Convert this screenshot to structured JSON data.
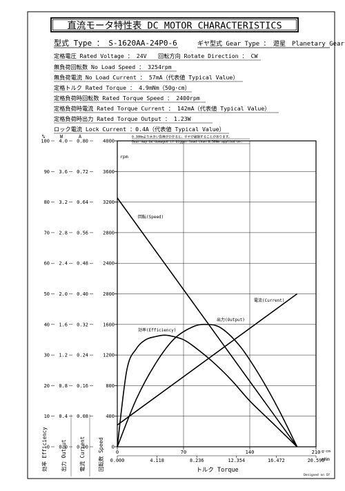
{
  "header": {
    "title": "直流モータ特性表 DC MOTOR CHARACTERISTICS",
    "model_label": "型式 Type ： S-1620AA-24P0-6",
    "gear_type": "ギヤ型式 Gear Type ： 遊星　Planetary Gear",
    "specs": [
      "定格電圧 Rated Voltage ： 24V",
      "回転方向 Rotate Direction ： CW",
      "無負荷回転数 No Load Speed ： 3254rpm",
      "無負荷電流 No Load Current ： 57mA（代表値 Typical Value）",
      "定格トルク Rated Torque ： 4.9mNm（50g･cm）",
      "定格負荷時回転数 Rated Torque Speed ： 2400rpm",
      "定格負荷時電流 Rated Torque Current ： 142mA（代表値 Typical Value）",
      "定格負荷時出力 Rated Torque Output ： 1.23W",
      "ロック電流 Lock Current ：0.4A（代表値 Typical Value）"
    ],
    "warning_jp": "0.38Nmより大きい負荷がかかると、ギヤが破損することがあります。",
    "warning_en": "Gear may be damaged if bigger load than 0.38Nm applied on.",
    "footer_note": "Designed on SY"
  },
  "chart_data": {
    "type": "line",
    "units": {
      "efficiency": "%",
      "output": "W",
      "current": "A",
      "speed": "rpm"
    },
    "xlabel": "トルク Torque",
    "x_unit_gcm": "g･cm",
    "x_unit_mnm": "mNm",
    "x_ticks_gcm": [
      "0",
      "70",
      "140",
      "210"
    ],
    "x_ticks_mnm": [
      "0.000",
      "4.118",
      "8.236",
      "12.354",
      "16.472",
      "20.590"
    ],
    "xlim_gcm": [
      0,
      210
    ],
    "y_axis_titles": [
      "効率 Efficiency",
      "出力 Output",
      "電流 Current",
      "回転数 Speed"
    ],
    "efficiency_ticks": [
      "100",
      "90",
      "80",
      "70",
      "60",
      "50",
      "40",
      "30",
      "20",
      "10",
      "0"
    ],
    "output_ticks": [
      "4.0",
      "3.6",
      "3.2",
      "2.8",
      "2.4",
      "2.0",
      "1.6",
      "1.2",
      "0.8",
      "0.4",
      "0.0"
    ],
    "current_ticks": [
      "0.80",
      "0.72",
      "0.64",
      "0.56",
      "0.48",
      "0.40",
      "0.32",
      "0.24",
      "0.16",
      "0.08",
      "0.00"
    ],
    "speed_ticks": [
      "4000",
      "3600",
      "3200",
      "2800",
      "2400",
      "2000",
      "1600",
      "1200",
      "800",
      "400",
      "0"
    ],
    "ylim_speed": [
      0,
      4000
    ],
    "series": [
      {
        "name": "回転(Speed)",
        "axis": "speed",
        "x": [
          0,
          190
        ],
        "y": [
          3254,
          0
        ]
      },
      {
        "name": "電流(Current)",
        "axis": "current",
        "x": [
          0,
          190
        ],
        "y": [
          0.057,
          0.4
        ]
      },
      {
        "name": "出力(Output)",
        "axis": "output",
        "x": [
          0,
          20,
          40,
          60,
          80,
          95,
          110,
          130,
          150,
          170,
          190
        ],
        "y": [
          0,
          0.62,
          1.08,
          1.41,
          1.57,
          1.6,
          1.55,
          1.31,
          0.94,
          0.5,
          0
        ]
      },
      {
        "name": "効率(Efficiency)",
        "axis": "efficiency",
        "x": [
          0,
          10,
          20,
          30,
          40,
          50,
          60,
          70,
          80,
          100,
          120,
          140,
          160,
          180,
          190
        ],
        "y": [
          0,
          25,
          32,
          35,
          36,
          36.5,
          36,
          35,
          33,
          28,
          22,
          15,
          9,
          3,
          0
        ]
      }
    ],
    "grid": true
  }
}
